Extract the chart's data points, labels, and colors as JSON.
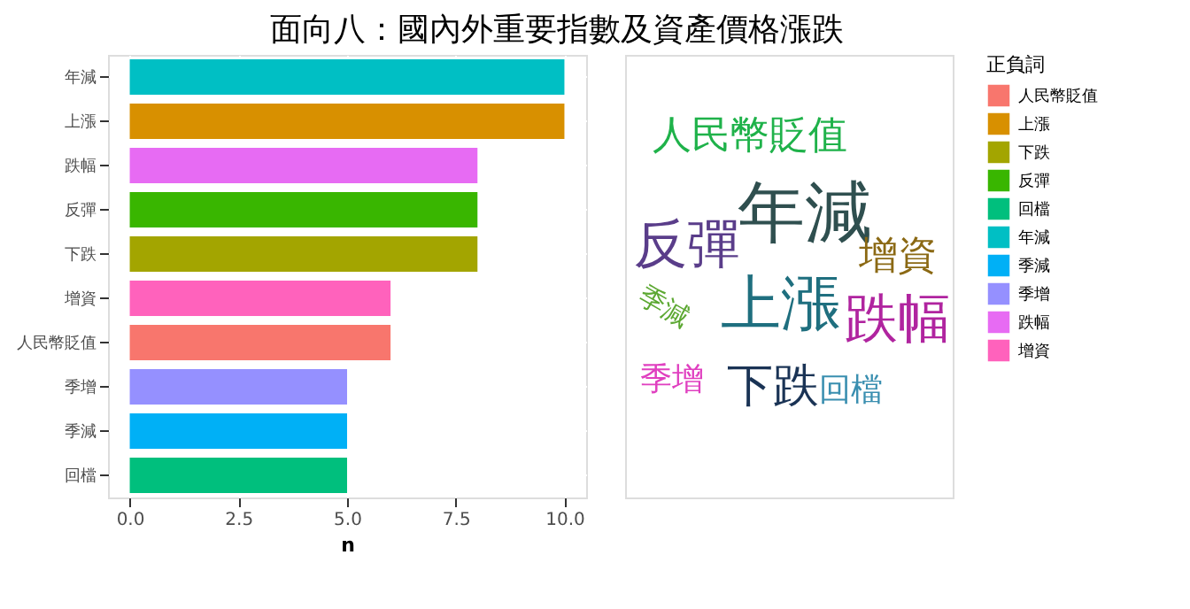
{
  "chart_data": [
    {
      "type": "bar",
      "orientation": "horizontal",
      "title": "面向八：國內外重要指數及資產價格漲跌",
      "xlabel": "n",
      "legend_title": "正負詞",
      "legend": "right",
      "categories": [
        "年減",
        "上漲",
        "跌幅",
        "反彈",
        "下跌",
        "增資",
        "人民幣貶值",
        "季增",
        "季減",
        "回檔"
      ],
      "series": [
        {
          "name": "人民幣貶值",
          "color": "#f8766d",
          "values": [
            null,
            null,
            null,
            null,
            null,
            null,
            6,
            null,
            null,
            null
          ]
        },
        {
          "name": "上漲",
          "color": "#d89000",
          "values": [
            null,
            10,
            null,
            null,
            null,
            null,
            null,
            null,
            null,
            null
          ]
        },
        {
          "name": "下跌",
          "color": "#a3a500",
          "values": [
            null,
            null,
            null,
            null,
            8,
            null,
            null,
            null,
            null,
            null
          ]
        },
        {
          "name": "反彈",
          "color": "#39b600",
          "values": [
            null,
            null,
            null,
            8,
            null,
            null,
            null,
            null,
            null,
            null
          ]
        },
        {
          "name": "回檔",
          "color": "#00bf7d",
          "values": [
            null,
            null,
            null,
            null,
            null,
            null,
            null,
            null,
            null,
            5
          ]
        },
        {
          "name": "年減",
          "color": "#00bfc4",
          "values": [
            10,
            null,
            null,
            null,
            null,
            null,
            null,
            null,
            null,
            null
          ]
        },
        {
          "name": "季減",
          "color": "#00b0f6",
          "values": [
            null,
            null,
            null,
            null,
            null,
            null,
            null,
            null,
            5,
            null
          ]
        },
        {
          "name": "季增",
          "color": "#9590ff",
          "values": [
            null,
            null,
            null,
            null,
            null,
            null,
            null,
            5,
            null,
            null
          ]
        },
        {
          "name": "跌幅",
          "color": "#e76bf3",
          "values": [
            null,
            null,
            8,
            null,
            null,
            null,
            null,
            null,
            null,
            null
          ]
        },
        {
          "name": "增資",
          "color": "#ff62bc",
          "values": [
            null,
            null,
            null,
            null,
            null,
            6,
            null,
            null,
            null,
            null
          ]
        }
      ],
      "xlim": [
        -0.5,
        10.5
      ],
      "xticks": [
        {
          "value": 0,
          "label": "0.0"
        },
        {
          "value": 2.5,
          "label": "2.5"
        },
        {
          "value": 5,
          "label": "5.0"
        },
        {
          "value": 7.5,
          "label": "7.5"
        },
        {
          "value": 10,
          "label": "10.0"
        }
      ],
      "grid": true
    },
    {
      "type": "other",
      "annotations": [
        "人民幣貶值",
        "年減",
        "反彈",
        "增資",
        "上漲",
        "跌幅",
        "季減",
        "季增",
        "下跌",
        "回檔"
      ],
      "colors": [
        "#1fb24a",
        "#2f4f4f",
        "#5a3d8a",
        "#8b6914",
        "#1f6f7f",
        "#b0249f",
        "#5ca832",
        "#e040c0",
        "#1a3355",
        "#3a8fb0"
      ]
    }
  ]
}
